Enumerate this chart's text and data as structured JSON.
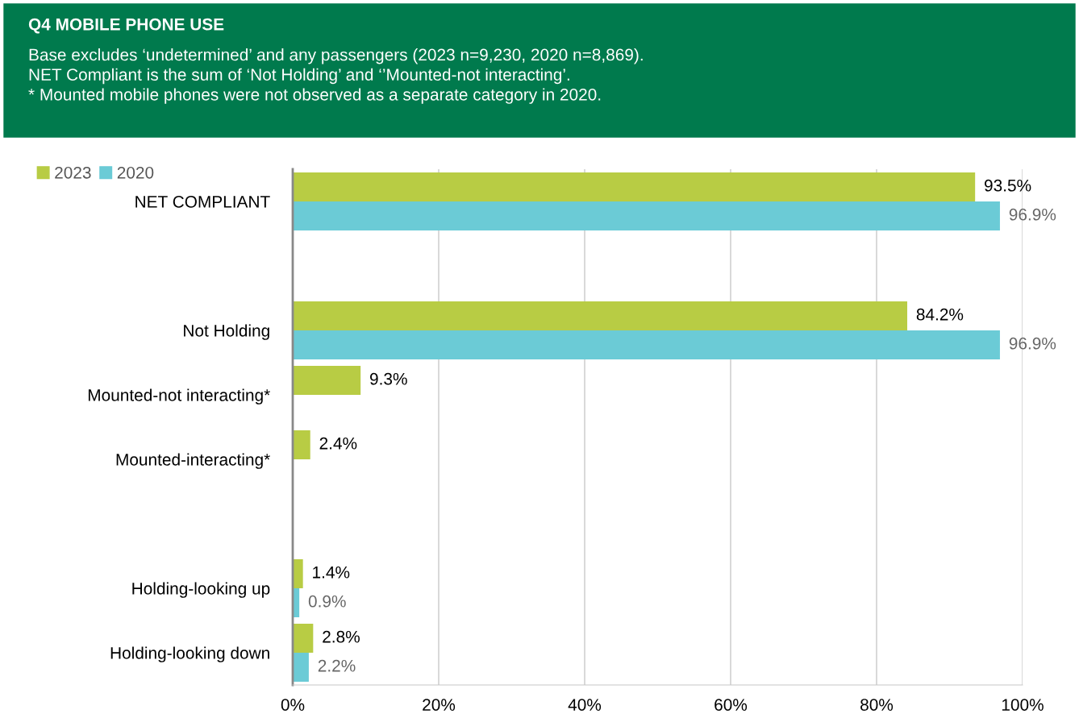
{
  "chart_data": {
    "type": "bar",
    "orientation": "horizontal",
    "title": "Q4 MOBILE PHONE USE",
    "subtitle": "Base excludes ‘undetermined’ and any passengers (2023 n=9,230, 2020 n=8,869).\nNET Compliant is the sum of ‘Not Holding’ and ‘’Mounted-not interacting’.\n* Mounted mobile phones were not observed as a separate category in 2020.",
    "categories": [
      "NET COMPLIANT",
      null,
      "Not Holding",
      "Mounted-not interacting*",
      "Mounted-interacting*",
      null,
      "Holding-looking up",
      "Holding-looking down"
    ],
    "series": [
      {
        "name": "2023",
        "color": "#b8cc44",
        "values": [
          93.5,
          null,
          84.2,
          9.3,
          2.4,
          null,
          1.4,
          2.8
        ],
        "value_labels": [
          "93.5%",
          null,
          "84.2%",
          "9.3%",
          "2.4%",
          null,
          "1.4%",
          "2.8%"
        ]
      },
      {
        "name": "2020",
        "color": "#6bcbd6",
        "values": [
          96.9,
          null,
          96.9,
          null,
          null,
          null,
          0.9,
          2.2
        ],
        "value_labels": [
          "96.9%",
          null,
          "96.9%",
          null,
          null,
          null,
          "0.9%",
          "2.2%"
        ]
      }
    ],
    "xlim": [
      0,
      100
    ],
    "xticks": [
      {
        "value": 0,
        "label": "0%"
      },
      {
        "value": 20,
        "label": "20%"
      },
      {
        "value": 40,
        "label": "40%"
      },
      {
        "value": 60,
        "label": "60%"
      },
      {
        "value": 80,
        "label": "80%"
      },
      {
        "value": 100,
        "label": "100%"
      }
    ],
    "grid": "x",
    "legend": "top left"
  }
}
